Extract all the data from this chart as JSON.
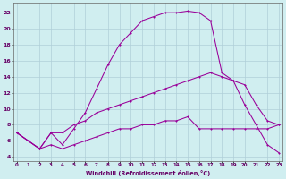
{
  "xlabel": "Windchill (Refroidissement éolien,°C)",
  "background_color": "#d0eef0",
  "grid_color": "#b0cfd8",
  "line_color": "#990099",
  "x_ticks": [
    0,
    1,
    2,
    3,
    4,
    5,
    6,
    7,
    8,
    9,
    10,
    11,
    12,
    13,
    14,
    15,
    16,
    17,
    18,
    19,
    20,
    21,
    22,
    23
  ],
  "y_ticks": [
    4,
    6,
    8,
    10,
    12,
    14,
    16,
    18,
    20,
    22
  ],
  "xlim": [
    -0.3,
    23.3
  ],
  "ylim": [
    3.5,
    23.2
  ],
  "line1_x": [
    0,
    1,
    2,
    3,
    4,
    5,
    6,
    7,
    8,
    9,
    10,
    11,
    12,
    13,
    14,
    15,
    16,
    17,
    18,
    19,
    20,
    21,
    22,
    23
  ],
  "line1_y": [
    7.0,
    6.0,
    5.0,
    7.0,
    5.5,
    7.5,
    9.5,
    12.5,
    15.5,
    18.0,
    19.5,
    21.0,
    21.5,
    22.0,
    22.0,
    22.2,
    22.0,
    21.0,
    14.5,
    13.5,
    10.5,
    8.0,
    5.5,
    4.5
  ],
  "line2_x": [
    0,
    1,
    2,
    3,
    4,
    5,
    6,
    7,
    8,
    9,
    10,
    11,
    12,
    13,
    14,
    15,
    16,
    17,
    18,
    19,
    20,
    21,
    22,
    23
  ],
  "line2_y": [
    7.0,
    6.0,
    5.0,
    7.0,
    7.0,
    8.0,
    8.5,
    9.5,
    10.0,
    10.5,
    11.0,
    11.5,
    12.0,
    12.5,
    13.0,
    13.5,
    14.0,
    14.5,
    14.0,
    13.5,
    13.0,
    10.5,
    8.5,
    8.0
  ],
  "line3_x": [
    0,
    1,
    2,
    3,
    4,
    5,
    6,
    7,
    8,
    9,
    10,
    11,
    12,
    13,
    14,
    15,
    16,
    17,
    18,
    19,
    20,
    21,
    22,
    23
  ],
  "line3_y": [
    7.0,
    6.0,
    5.0,
    5.5,
    5.0,
    5.5,
    6.0,
    6.5,
    7.0,
    7.5,
    7.5,
    8.0,
    8.0,
    8.5,
    8.5,
    9.0,
    7.5,
    7.5,
    7.5,
    7.5,
    7.5,
    7.5,
    7.5,
    8.0
  ]
}
